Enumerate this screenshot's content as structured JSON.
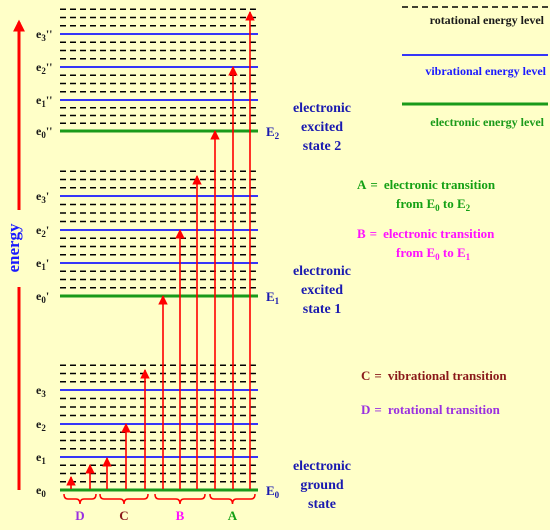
{
  "colors": {
    "background": "#ffffc8",
    "rotational": "#000000",
    "vibrational": "#1a1aff",
    "electronic": "#1a9a1a",
    "arrow": "#ff0000",
    "label_dark": "#1a1a1a",
    "state_text": "#1a1ab0",
    "transition_A": "#14a014",
    "transition_B": "#ff10ff",
    "transition_C": "#8a1a1a",
    "transition_D": "#9a30e0"
  },
  "axis": {
    "label": "energy"
  },
  "legend": {
    "rotational": "rotational energy level",
    "vibrational": "vibrational energy level",
    "electronic": "electronic energy level"
  },
  "states": [
    {
      "lines": [
        "electronic",
        "ground",
        "state"
      ],
      "level": "E",
      "sub": "0"
    },
    {
      "lines": [
        "electronic",
        "excited",
        "state 1"
      ],
      "level": "E",
      "sub": "1"
    },
    {
      "lines": [
        "electronic",
        "excited",
        "state 2"
      ],
      "level": "E",
      "sub": "2"
    }
  ],
  "vib_labels": [
    [
      "e",
      "0",
      ""
    ],
    [
      "e",
      "1",
      ""
    ],
    [
      "e",
      "2",
      ""
    ],
    [
      "e",
      "3",
      ""
    ],
    [
      "e",
      "0",
      "'"
    ],
    [
      "e",
      "1",
      "'"
    ],
    [
      "e",
      "2",
      "'"
    ],
    [
      "e",
      "3",
      "'"
    ],
    [
      "e",
      "0",
      "''"
    ],
    [
      "e",
      "1",
      "''"
    ],
    [
      "e",
      "2",
      "''"
    ],
    [
      "e",
      "3",
      "''"
    ]
  ],
  "transitions": {
    "A": {
      "letter": "A",
      "eq": "=",
      "text1": "electronic transition",
      "text2": "from E",
      "sub2": "0",
      "tail2": " to E",
      "sub3": "2"
    },
    "B": {
      "letter": "B",
      "eq": "=",
      "text1": "electronic transition",
      "text2": "from E",
      "sub2": "0",
      "tail2": " to E",
      "sub3": "1"
    },
    "C": {
      "letter": "C",
      "eq": "=",
      "text1": "vibrational transition"
    },
    "D": {
      "letter": "D",
      "eq": "=",
      "text1": "rotational transition"
    }
  },
  "groups": [
    "D",
    "C",
    "B",
    "A"
  ]
}
